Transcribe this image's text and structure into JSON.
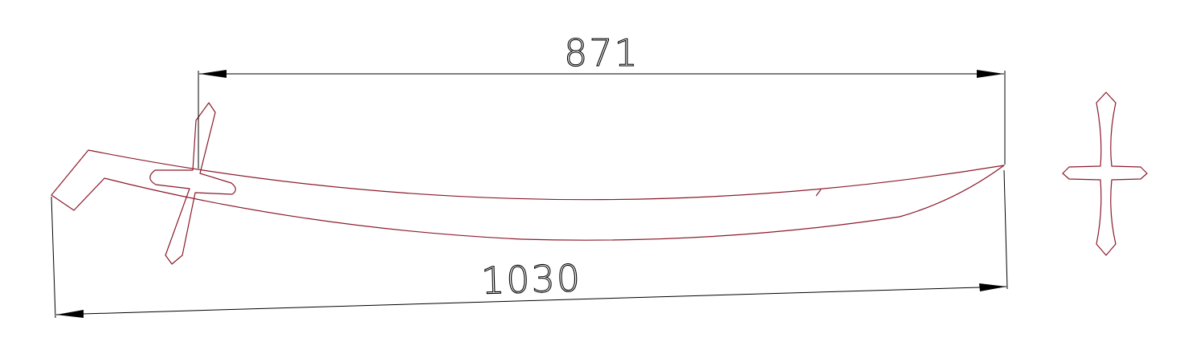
{
  "dimensions": {
    "top_length": "871",
    "bottom_length": "1030"
  },
  "colors": {
    "outline": "#8b1a2b",
    "dimension": "#000000",
    "background": "#ffffff"
  }
}
